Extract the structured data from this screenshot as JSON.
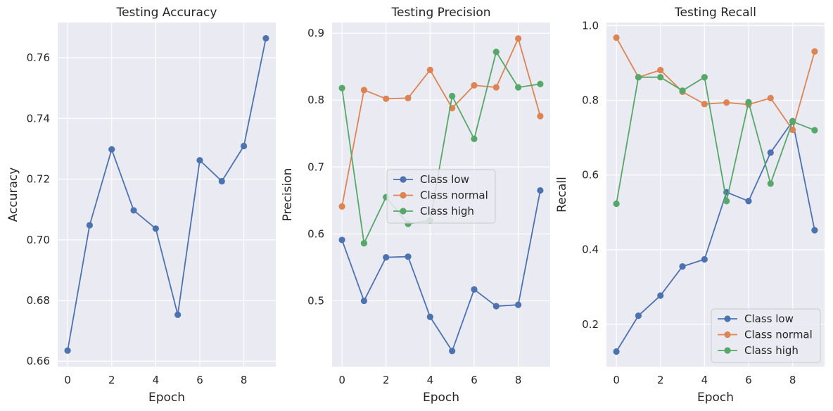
{
  "chart_data": [
    {
      "type": "line",
      "title": "Testing Accuracy",
      "xlabel": "Epoch",
      "ylabel": "Accuracy",
      "xlim": [
        -0.45,
        9.45
      ],
      "ylim": [
        0.6582,
        0.7716
      ],
      "grid": true,
      "x": [
        0,
        1,
        2,
        3,
        4,
        5,
        6,
        7,
        8,
        9
      ],
      "xticks": [
        0,
        2,
        4,
        6,
        8
      ],
      "yticks": [
        0.66,
        0.68,
        0.7,
        0.72,
        0.74,
        0.76
      ],
      "ytick_labels": [
        "0.66",
        "0.68",
        "0.70",
        "0.72",
        "0.74",
        "0.76"
      ],
      "legend": null,
      "series": [
        {
          "color": "#4c72b0",
          "values": [
            0.6635,
            0.7048,
            0.7298,
            0.7097,
            0.7037,
            0.6753,
            0.7262,
            0.7193,
            0.7309,
            0.7664
          ]
        }
      ]
    },
    {
      "type": "line",
      "title": "Testing Precision",
      "xlabel": "Epoch",
      "ylabel": "Precision",
      "xlim": [
        -0.45,
        9.45
      ],
      "ylim": [
        0.4016,
        0.9159
      ],
      "grid": true,
      "x": [
        0,
        1,
        2,
        3,
        4,
        5,
        6,
        7,
        8,
        9
      ],
      "xticks": [
        0,
        2,
        4,
        6,
        8
      ],
      "yticks": [
        0.5,
        0.6,
        0.7,
        0.8,
        0.9
      ],
      "ytick_labels": [
        "0.5",
        "0.6",
        "0.7",
        "0.8",
        "0.9"
      ],
      "legend": "center-left",
      "series": [
        {
          "name": "Class low",
          "color": "#4c72b0",
          "values": [
            0.591,
            0.5,
            0.565,
            0.566,
            0.476,
            0.425,
            0.517,
            0.492,
            0.494,
            0.665
          ]
        },
        {
          "name": "Class normal",
          "color": "#dd8452",
          "values": [
            0.641,
            0.815,
            0.802,
            0.803,
            0.845,
            0.788,
            0.822,
            0.819,
            0.892,
            0.776
          ]
        },
        {
          "name": "Class high",
          "color": "#55a868",
          "values": [
            0.818,
            0.586,
            0.655,
            0.615,
            0.62,
            0.806,
            0.742,
            0.872,
            0.819,
            0.824
          ]
        }
      ]
    },
    {
      "type": "line",
      "title": "Testing Recall",
      "xlabel": "Epoch",
      "ylabel": "Recall",
      "xlim": [
        -0.45,
        9.45
      ],
      "ylim": [
        0.0865,
        1.0085
      ],
      "grid": true,
      "x": [
        0,
        1,
        2,
        3,
        4,
        5,
        6,
        7,
        8,
        9
      ],
      "xticks": [
        0,
        2,
        4,
        6,
        8
      ],
      "yticks": [
        0.2,
        0.4,
        0.6,
        0.8,
        1.0
      ],
      "ytick_labels": [
        "0.2",
        "0.4",
        "0.6",
        "0.8",
        "1.0"
      ],
      "legend": "lower-right",
      "series": [
        {
          "name": "Class low",
          "color": "#4c72b0",
          "values": [
            0.127,
            0.223,
            0.277,
            0.355,
            0.374,
            0.554,
            0.53,
            0.66,
            0.744,
            0.452
          ]
        },
        {
          "name": "Class normal",
          "color": "#dd8452",
          "values": [
            0.968,
            0.862,
            0.881,
            0.823,
            0.79,
            0.794,
            0.789,
            0.806,
            0.721,
            0.931
          ]
        },
        {
          "name": "Class high",
          "color": "#55a868",
          "values": [
            0.523,
            0.862,
            0.862,
            0.826,
            0.862,
            0.53,
            0.795,
            0.577,
            0.743,
            0.72
          ]
        }
      ]
    }
  ]
}
